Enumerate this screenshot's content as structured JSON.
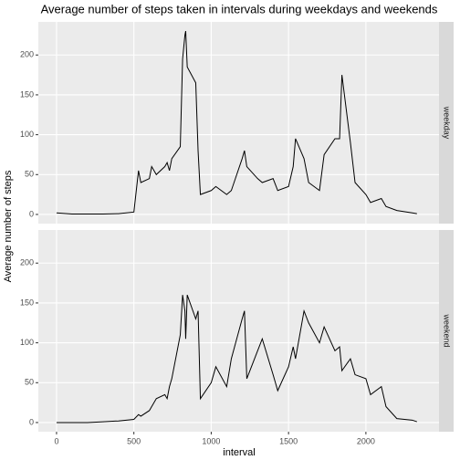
{
  "chart_data": {
    "type": "line",
    "title": "Average number of steps taken in intervals during weekdays and weekends",
    "xlabel": "interval",
    "ylabel": "Average number of steps",
    "xlim": [
      -117.75,
      2472.75
    ],
    "ylim": [
      -11.5,
      241.5
    ],
    "xticks": [
      0,
      500,
      1000,
      1500,
      2000
    ],
    "yticks": [
      0,
      50,
      100,
      150,
      200
    ],
    "grid": true,
    "color": "#000000",
    "x": [
      0,
      100,
      200,
      300,
      400,
      500,
      530,
      545,
      600,
      615,
      630,
      645,
      700,
      715,
      730,
      745,
      800,
      815,
      830,
      835,
      845,
      900,
      915,
      930,
      1000,
      1030,
      1100,
      1130,
      1200,
      1215,
      1230,
      1300,
      1330,
      1400,
      1430,
      1500,
      1530,
      1545,
      1600,
      1630,
      1700,
      1730,
      1800,
      1830,
      1845,
      1900,
      1930,
      2000,
      2030,
      2100,
      2130,
      2200,
      2300,
      2330
    ],
    "series": [
      {
        "name": "weekday",
        "values": [
          2,
          0.5,
          0.5,
          0.5,
          1,
          3,
          55,
          40,
          45,
          60,
          55,
          50,
          60,
          65,
          55,
          70,
          85,
          195,
          225,
          230,
          185,
          165,
          80,
          25,
          30,
          35,
          25,
          30,
          70,
          80,
          60,
          45,
          40,
          45,
          30,
          35,
          60,
          95,
          70,
          40,
          30,
          75,
          95,
          95,
          175,
          90,
          40,
          25,
          15,
          20,
          10,
          5,
          2,
          1
        ]
      },
      {
        "name": "weekend",
        "values": [
          0,
          0,
          0,
          1,
          2,
          4,
          10,
          8,
          15,
          20,
          25,
          30,
          35,
          30,
          45,
          55,
          110,
          160,
          140,
          105,
          160,
          130,
          140,
          30,
          50,
          70,
          45,
          80,
          130,
          140,
          55,
          90,
          105,
          60,
          40,
          70,
          95,
          80,
          140,
          125,
          100,
          120,
          90,
          95,
          65,
          80,
          60,
          55,
          35,
          45,
          20,
          5,
          3,
          1
        ]
      }
    ]
  }
}
